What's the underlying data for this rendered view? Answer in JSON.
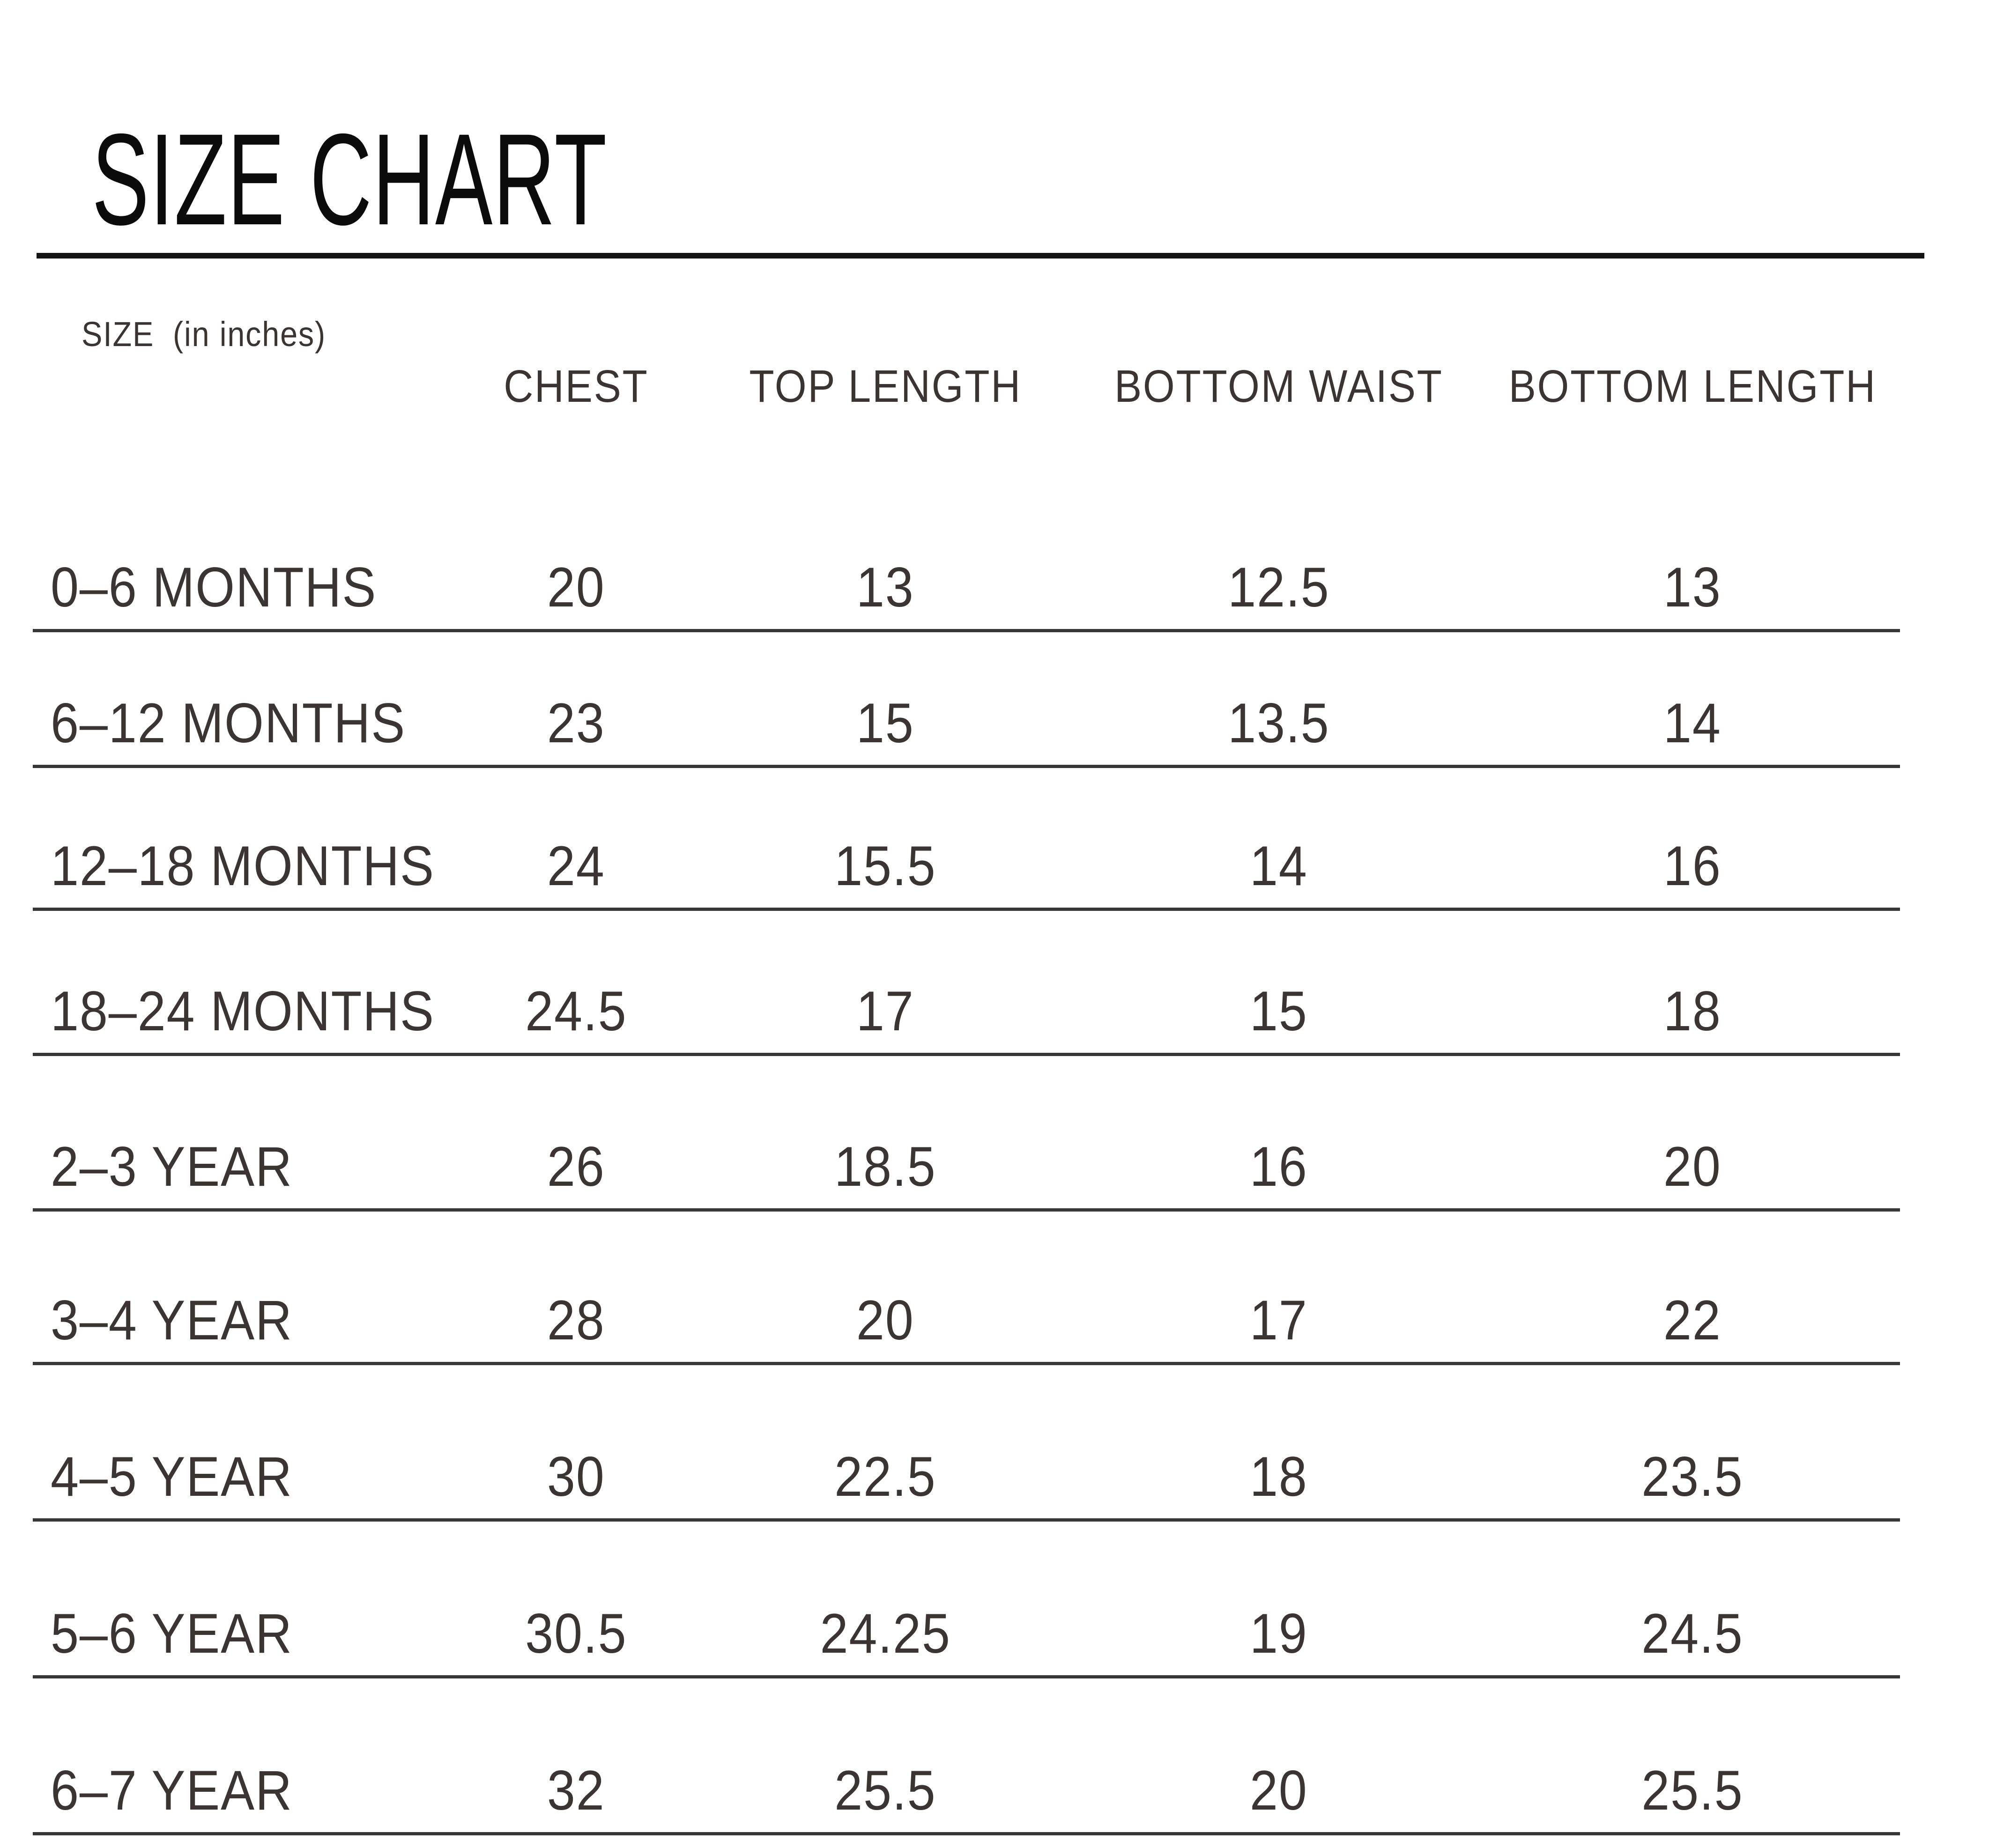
{
  "title": "SIZE CHART",
  "colors": {
    "background": "#ffffff",
    "title_text": "#0b0b0b",
    "title_rule": "#141414",
    "body_text": "#3a3532",
    "row_line": "#383838"
  },
  "table": {
    "headers": {
      "size_line1": "SIZE",
      "size_line2": "(in inches)",
      "chest": "CHEST",
      "top_length": "TOP LENGTH",
      "bottom_waist": "BOTTOM WAIST",
      "bottom_length": "BOTTOM LENGTH"
    },
    "rows": [
      {
        "size": "0–6 MONTHS",
        "chest": "20",
        "top_length": "13",
        "bottom_waist": "12.5",
        "bottom_length": "13"
      },
      {
        "size": "6–12 MONTHS",
        "chest": "23",
        "top_length": "15",
        "bottom_waist": "13.5",
        "bottom_length": "14"
      },
      {
        "size": "12–18 MONTHS",
        "chest": "24",
        "top_length": "15.5",
        "bottom_waist": "14",
        "bottom_length": "16"
      },
      {
        "size": "18–24 MONTHS",
        "chest": "24.5",
        "top_length": "17",
        "bottom_waist": "15",
        "bottom_length": "18"
      },
      {
        "size": "2–3 YEAR",
        "chest": "26",
        "top_length": "18.5",
        "bottom_waist": "16",
        "bottom_length": "20"
      },
      {
        "size": "3–4 YEAR",
        "chest": "28",
        "top_length": "20",
        "bottom_waist": "17",
        "bottom_length": "22"
      },
      {
        "size": "4–5 YEAR",
        "chest": "30",
        "top_length": "22.5",
        "bottom_waist": "18",
        "bottom_length": "23.5"
      },
      {
        "size": "5–6 YEAR",
        "chest": "30.5",
        "top_length": "24.25",
        "bottom_waist": "19",
        "bottom_length": "24.5"
      },
      {
        "size": "6–7 YEAR",
        "chest": "32",
        "top_length": "25.5",
        "bottom_waist": "20",
        "bottom_length": "25.5"
      }
    ]
  },
  "chart_data": {
    "type": "table",
    "title": "SIZE CHART",
    "units": "inches",
    "columns": [
      "SIZE (in inches)",
      "CHEST",
      "TOP LENGTH",
      "BOTTOM WAIST",
      "BOTTOM LENGTH"
    ],
    "rows": [
      [
        "0–6 MONTHS",
        20,
        13,
        12.5,
        13
      ],
      [
        "6–12 MONTHS",
        23,
        15,
        13.5,
        14
      ],
      [
        "12–18 MONTHS",
        24,
        15.5,
        14,
        16
      ],
      [
        "18–24 MONTHS",
        24.5,
        17,
        15,
        18
      ],
      [
        "2–3 YEAR",
        26,
        18.5,
        16,
        20
      ],
      [
        "3–4 YEAR",
        28,
        20,
        17,
        22
      ],
      [
        "4–5 YEAR",
        30,
        22.5,
        18,
        23.5
      ],
      [
        "5–6 YEAR",
        30.5,
        24.25,
        19,
        24.5
      ],
      [
        "6–7 YEAR",
        32,
        25.5,
        20,
        25.5
      ]
    ],
    "layout": "header row at top, one horizontal rule under every data row, no vertical gridlines"
  }
}
